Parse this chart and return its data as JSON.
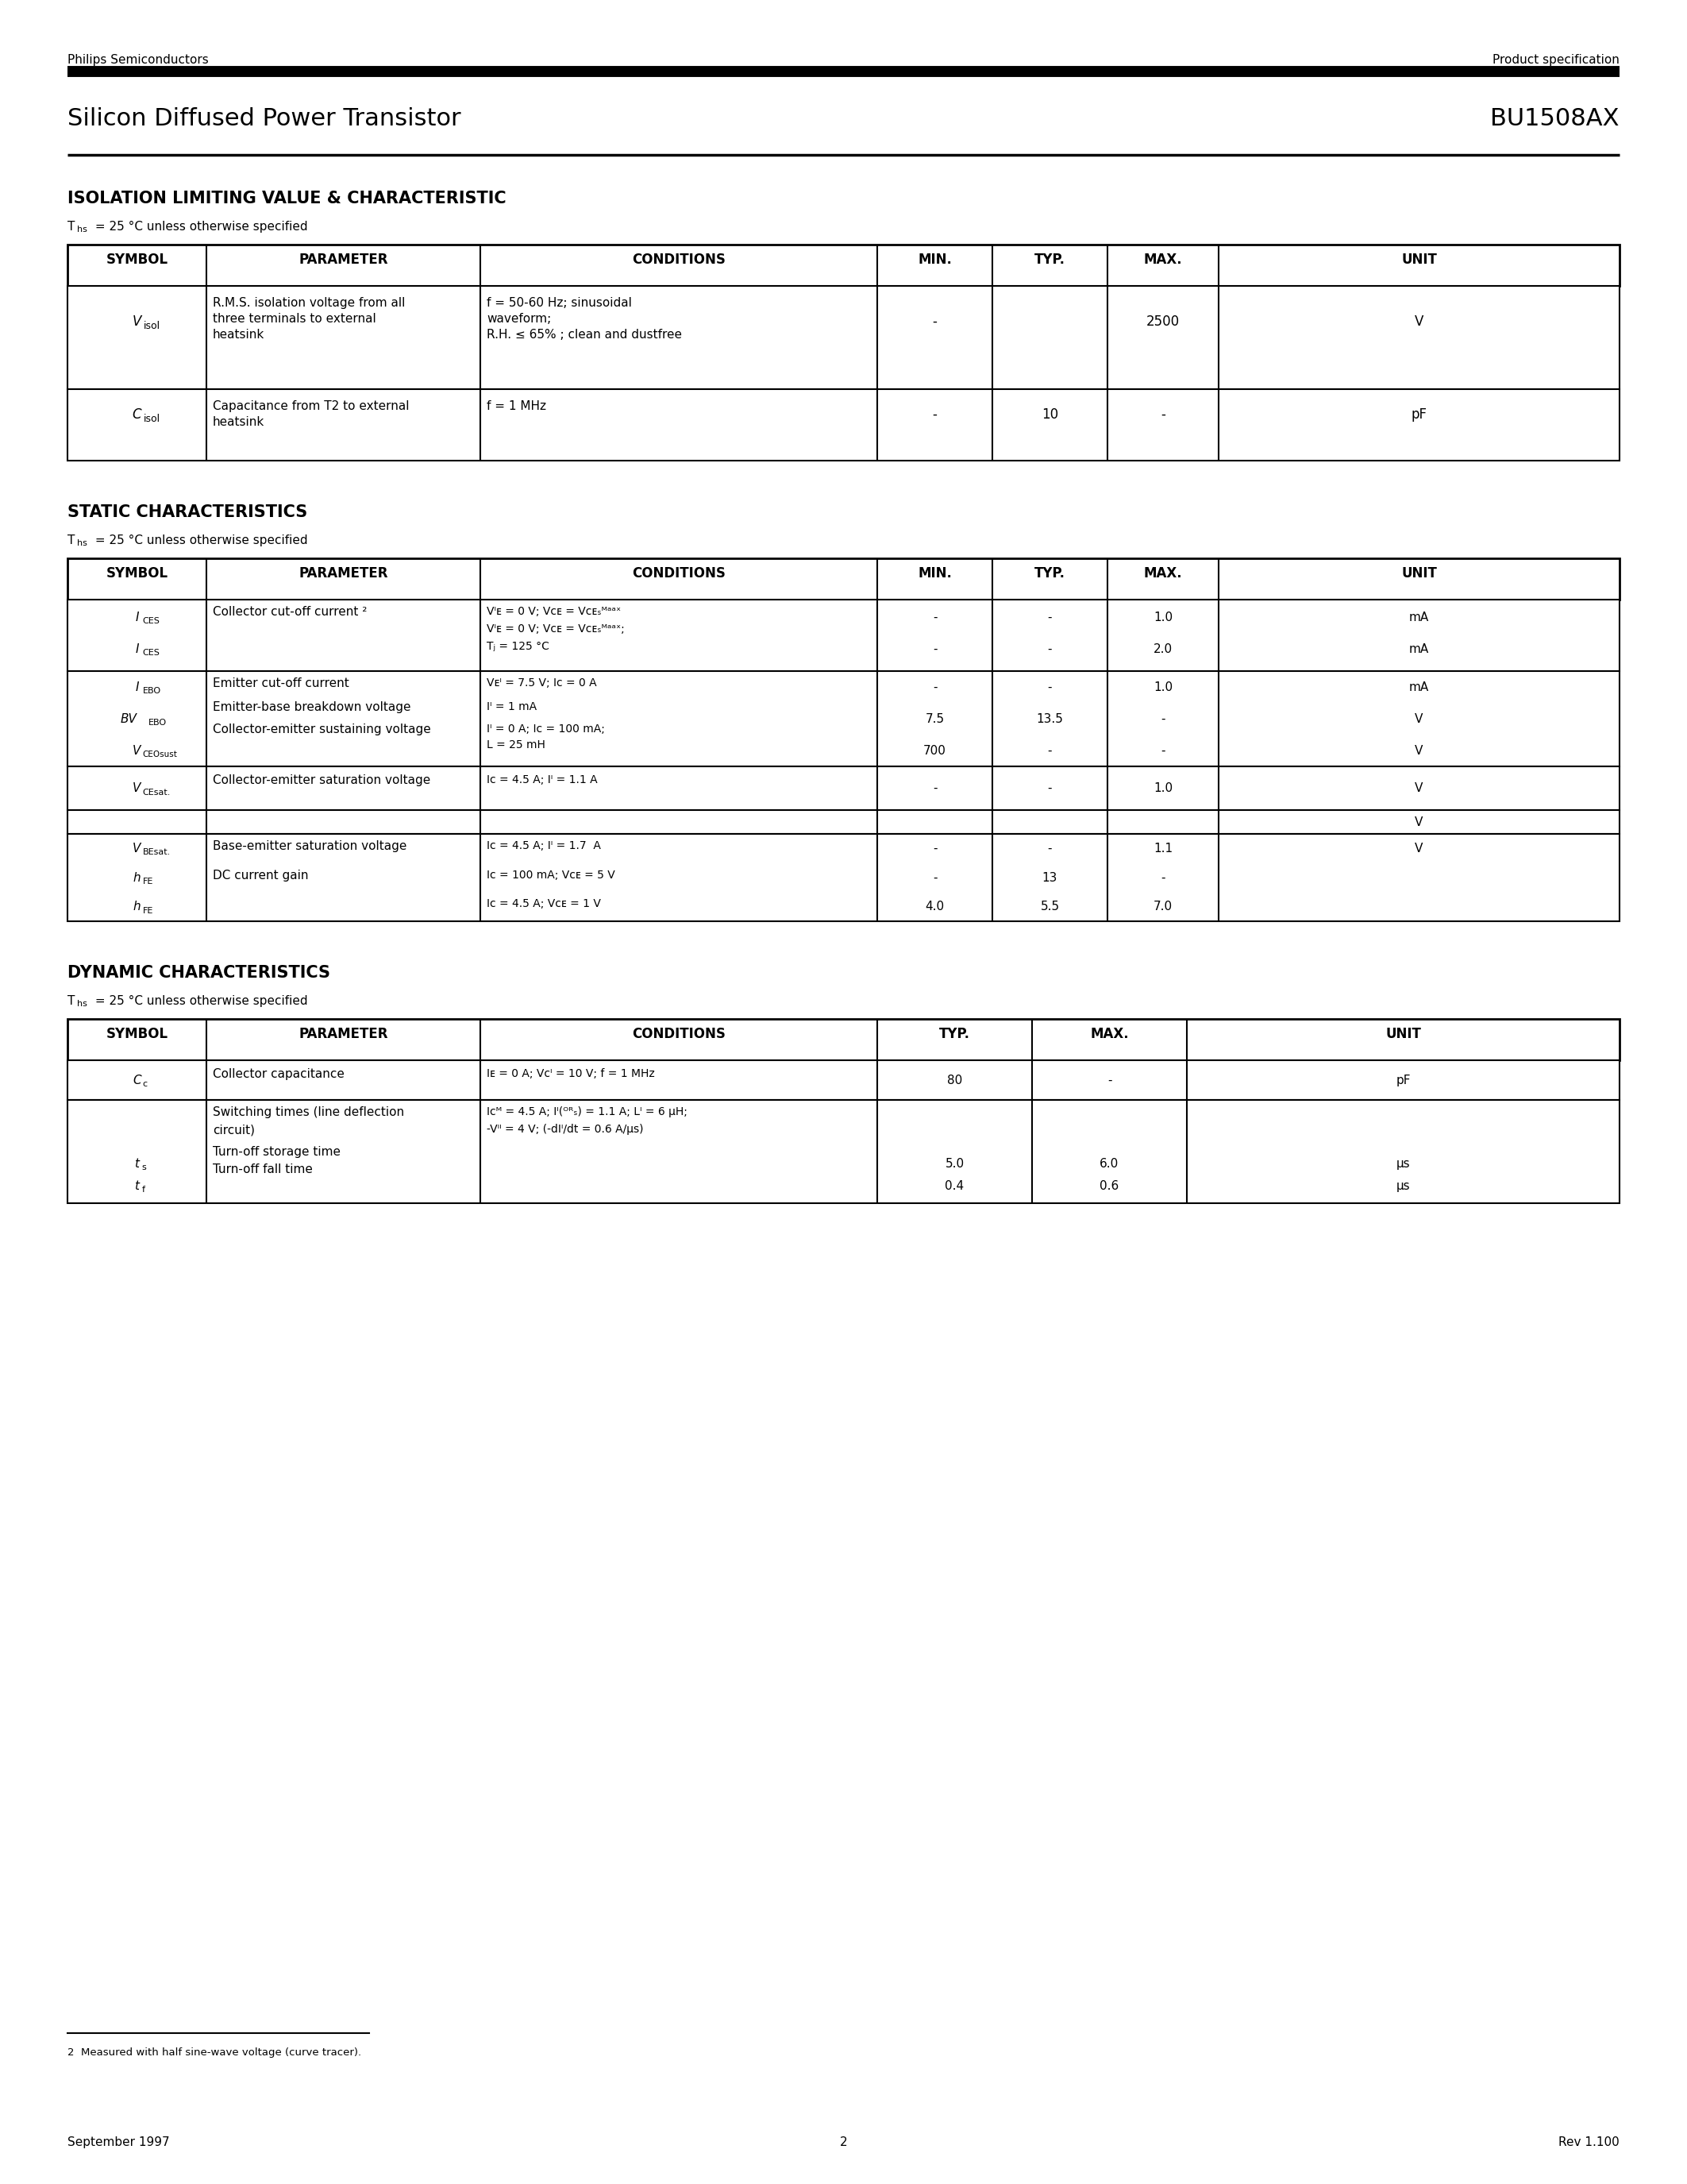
{
  "page_title_left": "Silicon Diffused Power Transistor",
  "page_title_right": "BU1508AX",
  "header_left": "Philips Semiconductors",
  "header_right": "Product specification",
  "footer_left": "September 1997",
  "footer_center": "2",
  "footer_right": "Rev 1.100",
  "footnote": "2  Measured with half sine-wave voltage (curve tracer).",
  "section1_title": "ISOLATION LIMITING VALUE & CHARACTERISTIC",
  "section1_temp": "T",
  "section1_temp_sub": "hs",
  "section1_temp_rest": " = 25 °C unless otherwise specified",
  "section2_title": "STATIC CHARACTERISTICS",
  "section3_title": "DYNAMIC CHARACTERISTICS",
  "temp_note": "T",
  "temp_note_sub": "hs",
  "temp_note_rest": " = 25 °C unless otherwise specified",
  "table1_headers": [
    "SYMBOL",
    "PARAMETER",
    "CONDITIONS",
    "MIN.",
    "TYP.",
    "MAX.",
    "UNIT"
  ],
  "table2_headers": [
    "SYMBOL",
    "PARAMETER",
    "CONDITIONS",
    "MIN.",
    "TYP.",
    "MAX.",
    "UNIT"
  ],
  "table3_headers": [
    "SYMBOL",
    "PARAMETER",
    "CONDITIONS",
    "TYP.",
    "MAX.",
    "UNIT"
  ],
  "bg_color": "#ffffff",
  "text_color": "#000000",
  "line_color": "#000000"
}
